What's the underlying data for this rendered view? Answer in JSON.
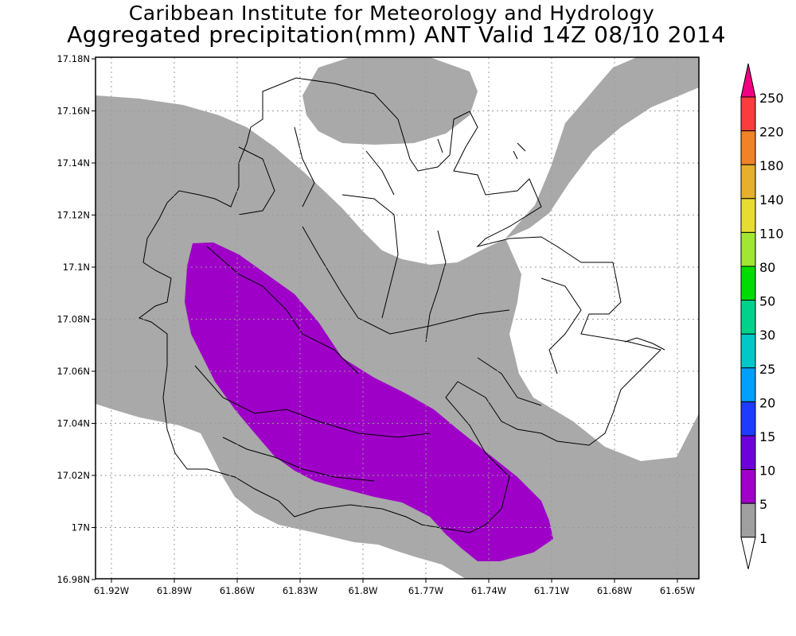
{
  "header": {
    "title_line1": "Caribbean Institute for Meteorology and Hydrology",
    "title_line2": "Aggregated precipitation(mm) ANT Valid 14Z 08/10 2014"
  },
  "map": {
    "lon_labels": [
      "61.92W",
      "61.89W",
      "61.86W",
      "61.83W",
      "61.8W",
      "61.77W",
      "61.74W",
      "61.71W",
      "61.68W",
      "61.65W"
    ],
    "lat_labels": [
      "17.18N",
      "17.16N",
      "17.14N",
      "17.12N",
      "17.1N",
      "17.08N",
      "17.06N",
      "17.04N",
      "17.02N",
      "17N",
      "16.98N"
    ],
    "shading": {
      "gray_meaning": "1-5 mm",
      "purple_meaning": "5-10 mm"
    }
  },
  "colorbar": {
    "levels": [
      {
        "label": "250",
        "color": "#fa3c3c"
      },
      {
        "label": "220",
        "color": "#f08228"
      },
      {
        "label": "180",
        "color": "#e6af2d"
      },
      {
        "label": "140",
        "color": "#e6dc32"
      },
      {
        "label": "110",
        "color": "#a0e632"
      },
      {
        "label": "80",
        "color": "#00dc00"
      },
      {
        "label": "50",
        "color": "#00d28c"
      },
      {
        "label": "30",
        "color": "#00c8c8"
      },
      {
        "label": "25",
        "color": "#00a0ff"
      },
      {
        "label": "20",
        "color": "#1e3cff"
      },
      {
        "label": "15",
        "color": "#6e00dc"
      },
      {
        "label": "10",
        "color": "#a000c8"
      },
      {
        "label": "5",
        "color": "#a0a0a0"
      },
      {
        "label": "1",
        "color": "#ffffff"
      }
    ],
    "top_color": "#f00082",
    "bottom_color": "#ffffff"
  }
}
